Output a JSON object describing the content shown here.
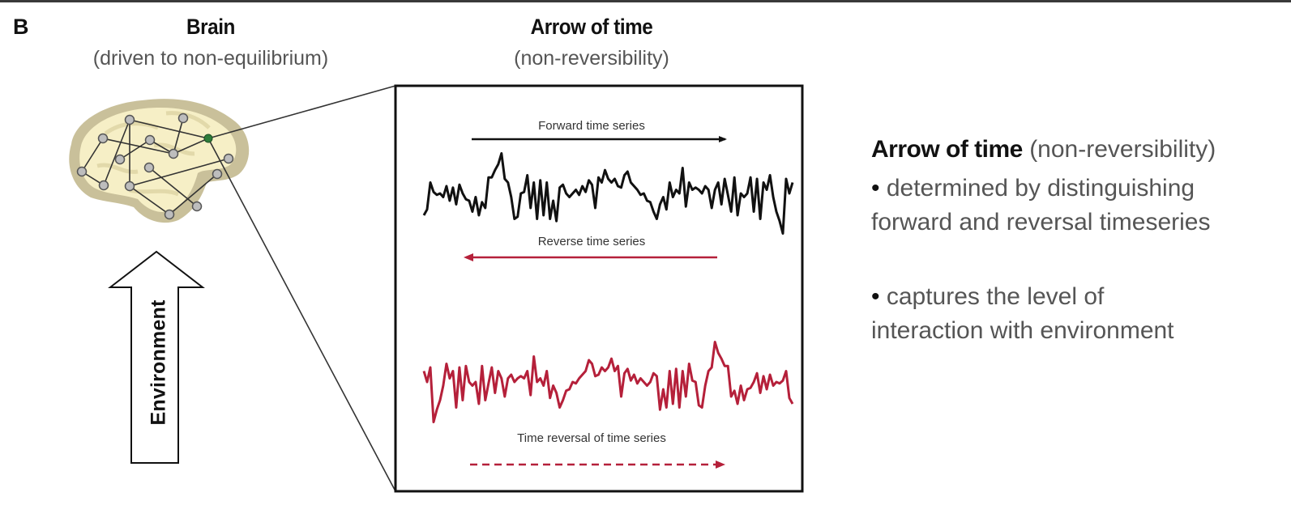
{
  "panel": {
    "label": "B"
  },
  "brain": {
    "title": "Brain",
    "subtitle": "(driven to non-equilibrium)",
    "environment_label": "Environment",
    "colors": {
      "brain_outer": "#c9c09a",
      "brain_inner": "#f6efc6",
      "node_fill": "#bdbdbd",
      "node_stroke": "#555555",
      "highlight_node": "#2e7d3a",
      "edge": "#333333"
    }
  },
  "arrow_of_time": {
    "title": "Arrow of time",
    "subtitle": "(non-reversibility)",
    "forward_label": "Forward time series",
    "reverse_label": "Reverse time series",
    "time_reversal_label": "Time reversal of time series",
    "colors": {
      "forward": "#111111",
      "reverse": "#b5203a"
    }
  },
  "explanation": {
    "heading_bold": "Arrow of time",
    "heading_rest": " (non-reversibility)",
    "bullet_symbol": "•",
    "bullets": [
      {
        "line1": " determined by distinguishing",
        "line2": "forward and reversal timeseries"
      },
      {
        "line1": " captures the level of",
        "line2": "interaction with environment"
      }
    ]
  },
  "chart_data": {
    "type": "line",
    "title": "Arrow of time (non-reversibility)",
    "xlabel": "",
    "ylabel": "",
    "grid": false,
    "legend": "none",
    "annotations": [
      "Forward time series",
      "Reverse time series",
      "Time reversal of time series"
    ],
    "series": [
      {
        "name": "Forward time series",
        "color": "#111111",
        "values": [
          0.1,
          0.18,
          0.55,
          0.42,
          0.38,
          0.4,
          0.35,
          0.5,
          0.3,
          0.48,
          0.25,
          0.52,
          0.4,
          0.32,
          0.3,
          0.15,
          0.35,
          0.1,
          0.28,
          0.2,
          0.62,
          0.62,
          0.72,
          0.8,
          0.95,
          0.6,
          0.55,
          0.35,
          0.05,
          0.08,
          0.4,
          0.42,
          0.65,
          0.2,
          0.55,
          0.05,
          0.58,
          0.1,
          0.55,
          0.05,
          0.3,
          0.02,
          0.48,
          0.52,
          0.4,
          0.35,
          0.4,
          0.45,
          0.38,
          0.5,
          0.42,
          0.58,
          0.52,
          0.2,
          0.62,
          0.55,
          0.72,
          0.6,
          0.55,
          0.6,
          0.5,
          0.48,
          0.65,
          0.7,
          0.55,
          0.5,
          0.45,
          0.38,
          0.4,
          0.3,
          0.28,
          0.15,
          0.05,
          0.25,
          0.35,
          0.18,
          0.55,
          0.35,
          0.45,
          0.4,
          0.75,
          0.22,
          0.55,
          0.45,
          0.48,
          0.45,
          0.4,
          0.5,
          0.45,
          0.2,
          0.45,
          0.55,
          0.25,
          0.6,
          0.38,
          0.15,
          0.62,
          0.1,
          0.4,
          0.35,
          0.4,
          0.62,
          0.15,
          0.6,
          0.05,
          0.55,
          0.45,
          0.65,
          0.35,
          0.15,
          0.02,
          -0.15,
          0.6,
          0.4,
          0.55
        ]
      },
      {
        "name": "Time reversal of time series",
        "color": "#b5203a",
        "values": "reverse of forward series"
      }
    ]
  }
}
